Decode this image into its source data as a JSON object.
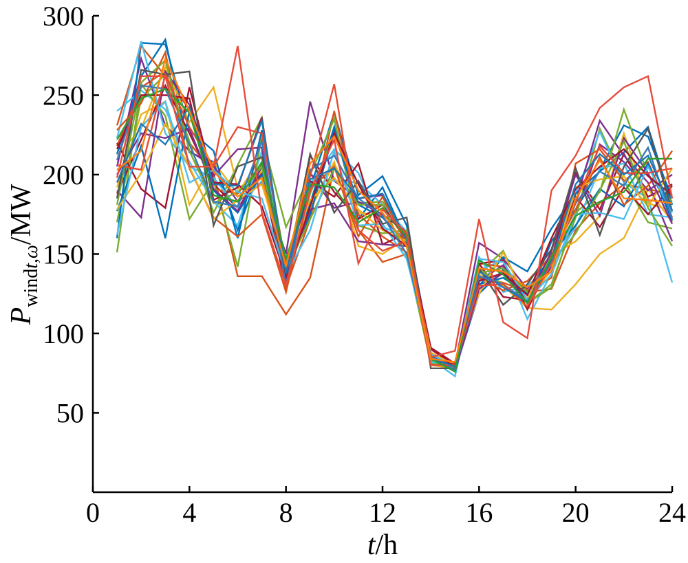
{
  "chart_data": {
    "type": "line",
    "xlabel": {
      "var": "t",
      "sep": "/",
      "unit": "h"
    },
    "ylabel": {
      "var": "P",
      "sub_roman": "wind",
      "sub_italic": "t,ω",
      "sep": "/",
      "unit": "MW"
    },
    "xlim": [
      0,
      24
    ],
    "ylim": [
      0,
      300
    ],
    "xticks": [
      0,
      4,
      8,
      12,
      16,
      20,
      24
    ],
    "yticks": [
      50,
      100,
      150,
      200,
      250,
      300
    ],
    "xtick_labels": [
      "0",
      "4",
      "8",
      "12",
      "16",
      "20",
      "24"
    ],
    "ytick_labels": [
      "50",
      "100",
      "150",
      "200",
      "250",
      "300"
    ],
    "grid": false,
    "legend": "none",
    "x": [
      1,
      2,
      3,
      4,
      5,
      6,
      7,
      8,
      9,
      10,
      11,
      12,
      13,
      14,
      15,
      16,
      17,
      18,
      19,
      20,
      21,
      22,
      23,
      24
    ],
    "series": [
      {
        "color": "#0072BD",
        "values": [
          213,
          262,
          285,
          214,
          208,
          165,
          206,
          135,
          182,
          230,
          172,
          192,
          158,
          85,
          77,
          125,
          140,
          120,
          158,
          178,
          203,
          231,
          224,
          185
        ]
      },
      {
        "color": "#D95319",
        "values": [
          218,
          255,
          265,
          220,
          201,
          136,
          136,
          112,
          135,
          205,
          165,
          145,
          150,
          82,
          79,
          135,
          132,
          126,
          128,
          165,
          182,
          194,
          191,
          187
        ]
      },
      {
        "color": "#EDB120",
        "values": [
          192,
          238,
          246,
          181,
          208,
          188,
          212,
          140,
          178,
          207,
          176,
          174,
          164,
          83,
          82,
          137,
          130,
          116,
          115,
          131,
          150,
          160,
          191,
          170
        ]
      },
      {
        "color": "#7E2F8E",
        "values": [
          205,
          273,
          231,
          215,
          205,
          183,
          195,
          150,
          246,
          196,
          185,
          187,
          160,
          87,
          80,
          157,
          147,
          128,
          145,
          175,
          219,
          208,
          190,
          200
        ]
      },
      {
        "color": "#77AC30",
        "values": [
          170,
          248,
          263,
          221,
          176,
          206,
          236,
          132,
          188,
          226,
          182,
          183,
          163,
          86,
          78,
          138,
          152,
          119,
          131,
          173,
          229,
          196,
          170,
          166
        ]
      },
      {
        "color": "#4DBEEE",
        "values": [
          240,
          253,
          241,
          208,
          183,
          168,
          215,
          138,
          200,
          196,
          195,
          181,
          164,
          84,
          73,
          140,
          146,
          109,
          138,
          188,
          227,
          195,
          185,
          132
        ]
      },
      {
        "color": "#A2142F",
        "values": [
          188,
          222,
          256,
          226,
          194,
          179,
          201,
          128,
          212,
          189,
          172,
          181,
          158,
          90,
          80,
          144,
          123,
          121,
          147,
          201,
          178,
          213,
          186,
          194
        ]
      },
      {
        "color": "#0072BD",
        "values": [
          160,
          283,
          282,
          228,
          215,
          160,
          228,
          138,
          191,
          239,
          187,
          199,
          168,
          88,
          76,
          130,
          148,
          139,
          166,
          188,
          202,
          214,
          230,
          181
        ]
      },
      {
        "color": "#D95319",
        "values": [
          231,
          281,
          262,
          241,
          191,
          188,
          207,
          129,
          172,
          240,
          175,
          161,
          151,
          85,
          77,
          144,
          142,
          127,
          135,
          207,
          216,
          196,
          208,
          173
        ]
      },
      {
        "color": "#EDB120",
        "values": [
          212,
          229,
          268,
          233,
          255,
          191,
          202,
          145,
          179,
          208,
          155,
          150,
          160,
          80,
          78,
          128,
          138,
          122,
          149,
          158,
          174,
          226,
          182,
          177
        ]
      },
      {
        "color": "#7E2F8E",
        "values": [
          190,
          173,
          265,
          244,
          199,
          216,
          217,
          131,
          201,
          179,
          183,
          175,
          164,
          84,
          81,
          133,
          143,
          120,
          142,
          183,
          234,
          212,
          195,
          158
        ]
      },
      {
        "color": "#77AC30",
        "values": [
          151,
          257,
          237,
          172,
          196,
          142,
          224,
          167,
          200,
          235,
          168,
          163,
          165,
          83,
          79,
          140,
          131,
          119,
          129,
          176,
          189,
          241,
          200,
          183
        ]
      },
      {
        "color": "#4DBEEE",
        "values": [
          223,
          284,
          226,
          205,
          198,
          179,
          196,
          141,
          194,
          216,
          201,
          167,
          161,
          82,
          79,
          148,
          126,
          130,
          143,
          167,
          204,
          207,
          175,
          173
        ]
      },
      {
        "color": "#A2142F",
        "values": [
          220,
          191,
          179,
          255,
          195,
          194,
          180,
          136,
          196,
          186,
          207,
          156,
          163,
          91,
          81,
          144,
          146,
          115,
          146,
          186,
          167,
          192,
          175,
          193
        ]
      },
      {
        "color": "#0072BD",
        "values": [
          177,
          218,
          160,
          240,
          190,
          176,
          200,
          137,
          175,
          227,
          181,
          173,
          157,
          85,
          77,
          131,
          135,
          125,
          150,
          168,
          191,
          180,
          207,
          171
        ]
      },
      {
        "color": "#D95319",
        "values": [
          228,
          245,
          277,
          204,
          173,
          161,
          175,
          126,
          191,
          205,
          161,
          186,
          156,
          80,
          82,
          135,
          127,
          133,
          149,
          178,
          211,
          181,
          193,
          215
        ]
      },
      {
        "color": "#EDB120",
        "values": [
          178,
          201,
          232,
          205,
          172,
          184,
          194,
          144,
          184,
          198,
          178,
          165,
          158,
          88,
          80,
          125,
          151,
          120,
          140,
          192,
          197,
          199,
          180,
          204
        ]
      },
      {
        "color": "#7E2F8E",
        "values": [
          200,
          226,
          223,
          229,
          191,
          177,
          205,
          136,
          178,
          182,
          158,
          156,
          155,
          84,
          76,
          128,
          138,
          119,
          152,
          200,
          174,
          223,
          201,
          169
        ]
      },
      {
        "color": "#77AC30",
        "values": [
          181,
          258,
          272,
          215,
          182,
          189,
          205,
          140,
          172,
          204,
          181,
          181,
          149,
          81,
          79,
          138,
          141,
          126,
          144,
          163,
          190,
          221,
          179,
          155
        ]
      },
      {
        "color": "#4DBEEE",
        "values": [
          162,
          230,
          246,
          195,
          203,
          189,
          185,
          137,
          165,
          215,
          168,
          169,
          147,
          87,
          79,
          147,
          145,
          121,
          137,
          175,
          176,
          172,
          205,
          176
        ]
      },
      {
        "color": "#A2142F",
        "values": [
          216,
          250,
          250,
          248,
          184,
          192,
          236,
          135,
          180,
          226,
          194,
          166,
          155,
          85,
          80,
          133,
          138,
          124,
          160,
          191,
          205,
          216,
          199,
          187
        ]
      },
      {
        "color": "#555555",
        "values": [
          185,
          266,
          263,
          265,
          168,
          205,
          211,
          138,
          213,
          176,
          196,
          169,
          173,
          78,
          78,
          141,
          118,
          131,
          153,
          204,
          162,
          205,
          229,
          177
        ]
      },
      {
        "color": "#3D7AB8",
        "values": [
          209,
          256,
          254,
          219,
          183,
          180,
          221,
          130,
          203,
          212,
          185,
          174,
          150,
          86,
          77,
          136,
          131,
          120,
          144,
          182,
          202,
          193,
          217,
          172
        ]
      },
      {
        "color": "#E64B35",
        "values": [
          206,
          203,
          263,
          230,
          205,
          230,
          226,
          143,
          199,
          257,
          165,
          152,
          158,
          80,
          80,
          130,
          131,
          117,
          144,
          183,
          218,
          201,
          201,
          204
        ]
      },
      {
        "color": "#1F77B4",
        "values": [
          195,
          232,
          219,
          243,
          194,
          193,
          234,
          138,
          197,
          204,
          185,
          188,
          159,
          85,
          79,
          139,
          129,
          120,
          146,
          194,
          213,
          200,
          212,
          177
        ]
      },
      {
        "color": "#2CA02C",
        "values": [
          222,
          248,
          254,
          239,
          187,
          183,
          208,
          147,
          194,
          192,
          170,
          179,
          161,
          84,
          76,
          146,
          137,
          119,
          148,
          174,
          183,
          189,
          210,
          210
        ]
      },
      {
        "color": "#E74C3C",
        "values": [
          198,
          262,
          262,
          205,
          205,
          281,
          176,
          130,
          190,
          222,
          144,
          178,
          163,
          85,
          89,
          172,
          107,
          97,
          190,
          212,
          242,
          255,
          262,
          185
        ]
      },
      {
        "color": "#FF7F0E",
        "values": [
          203,
          215,
          273,
          240,
          202,
          186,
          198,
          142,
          207,
          224,
          190,
          176,
          155,
          84,
          82,
          141,
          139,
          129,
          139,
          185,
          209,
          185,
          184,
          182
        ]
      }
    ]
  }
}
